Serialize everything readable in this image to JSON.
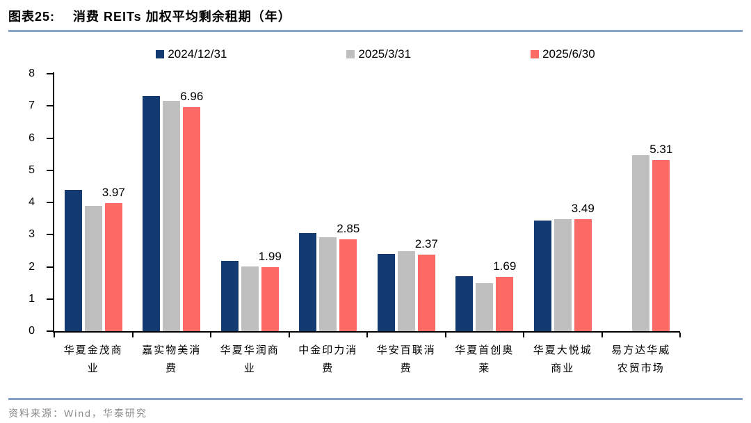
{
  "title": {
    "label": "图表25:",
    "text": "消费 REITs 加权平均剩余租期（年）"
  },
  "source": {
    "text": "资料来源：Wind，华泰研究"
  },
  "chart_data": {
    "type": "bar",
    "title": "消费 REITs 加权平均剩余租期（年）",
    "categories": [
      "华夏金茂商业",
      "嘉实物美消费",
      "华夏华润商业",
      "中金印力消费",
      "华安百联消费",
      "华夏首创奥莱",
      "华夏大悦城商业",
      "易方达华威农贸市场"
    ],
    "categories_wrapped": [
      "华夏金茂商\n业",
      "嘉实物美消\n费",
      "华夏华润商\n业",
      "中金印力消\n费",
      "华安百联消\n费",
      "华夏首创奥\n莱",
      "华夏大悦城\n商业",
      "易方达华威\n农贸市场"
    ],
    "series": [
      {
        "name": "2024/12/31",
        "color": "#133b72",
        "values": [
          4.38,
          7.31,
          2.18,
          3.05,
          2.4,
          1.71,
          3.44,
          null
        ]
      },
      {
        "name": "2025/3/31",
        "color": "#bfbfbf",
        "values": [
          3.9,
          7.16,
          2.01,
          2.92,
          2.48,
          1.5,
          3.48,
          5.48
        ]
      },
      {
        "name": "2025/6/30",
        "color": "#fc6a66",
        "values": [
          3.97,
          6.96,
          1.99,
          2.85,
          2.37,
          1.69,
          3.49,
          5.31
        ],
        "show_data_labels": true
      }
    ],
    "data_labels": [
      "3.97",
      "6.96",
      "1.99",
      "2.85",
      "2.37",
      "1.69",
      "3.49",
      "5.31"
    ],
    "ylim": [
      0,
      8
    ],
    "yticks": [
      0,
      1,
      2,
      3,
      4,
      5,
      6,
      7,
      8
    ],
    "xlabel": "",
    "ylabel": "",
    "grid": false,
    "legend_position": "top",
    "colors": {
      "axis": "#000000",
      "rule_line": "#85a4c7",
      "source_text": "#8a8a8a"
    }
  }
}
